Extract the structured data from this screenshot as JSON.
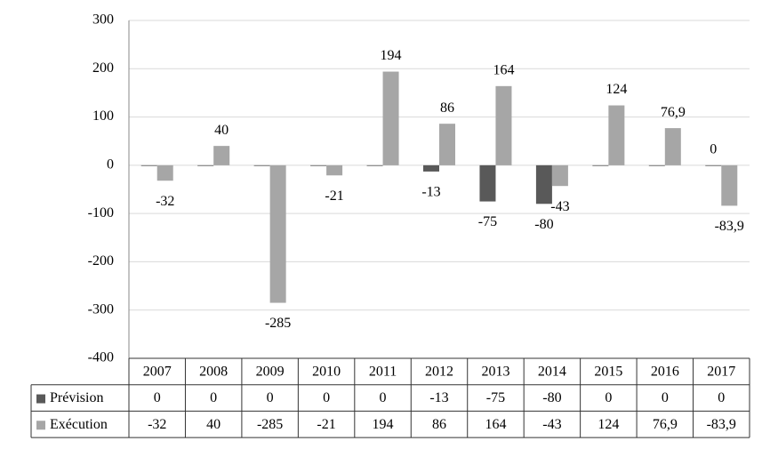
{
  "chart_data": {
    "type": "bar",
    "categories": [
      "2007",
      "2008",
      "2009",
      "2010",
      "2011",
      "2012",
      "2013",
      "2014",
      "2015",
      "2016",
      "2017"
    ],
    "series": [
      {
        "name": "Prévision",
        "color": "#595959",
        "values": [
          0,
          0,
          0,
          0,
          0,
          -13,
          -75,
          -80,
          0,
          0,
          0
        ],
        "value_labels": [
          null,
          null,
          null,
          null,
          null,
          "-13",
          "-75",
          "-80",
          null,
          null,
          "0"
        ]
      },
      {
        "name": "Exécution",
        "color": "#a6a6a6",
        "values": [
          -32,
          40,
          -285,
          -21,
          194,
          86,
          164,
          -43,
          124,
          76.9,
          -83.9
        ],
        "value_labels": [
          "-32",
          "40",
          "-285",
          "-21",
          "194",
          "86",
          "164",
          "-43",
          "124",
          "76,9",
          "-83,9"
        ]
      }
    ],
    "ylim": [
      -400,
      300
    ],
    "yticks": [
      -400,
      -300,
      -200,
      -100,
      0,
      100,
      200,
      300
    ],
    "grid": true,
    "data_table": true
  }
}
